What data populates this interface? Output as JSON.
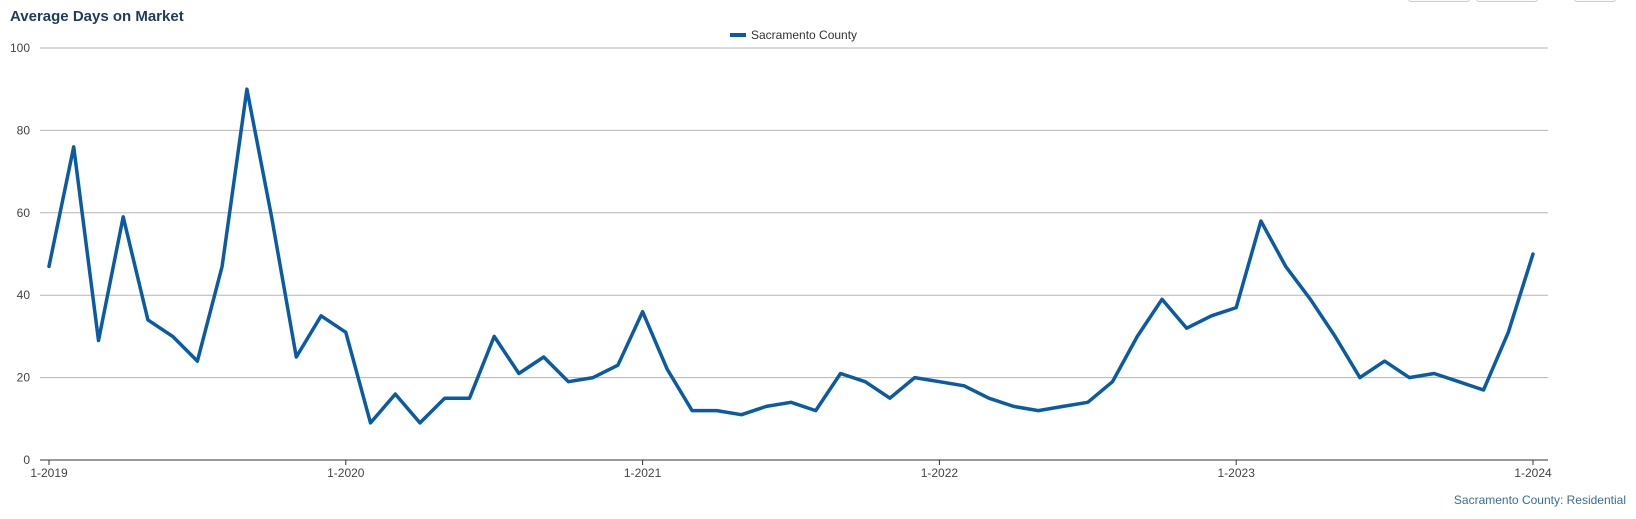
{
  "title": "Average Days on Market",
  "footer": "Sacramento County: Residential",
  "chart_data": {
    "type": "line",
    "title": "Average Days on Market",
    "xlabel": "",
    "ylabel": "",
    "ylim": [
      0,
      100
    ],
    "yticks": [
      0,
      20,
      40,
      60,
      80,
      100
    ],
    "xticks": [
      "1-2019",
      "1-2020",
      "1-2021",
      "1-2022",
      "1-2023",
      "1-2024"
    ],
    "grid": true,
    "legend_position": "top-center",
    "x": [
      "1-2019",
      "2-2019",
      "3-2019",
      "4-2019",
      "5-2019",
      "6-2019",
      "7-2019",
      "8-2019",
      "9-2019",
      "10-2019",
      "11-2019",
      "12-2019",
      "1-2020",
      "2-2020",
      "3-2020",
      "4-2020",
      "5-2020",
      "6-2020",
      "7-2020",
      "8-2020",
      "9-2020",
      "10-2020",
      "11-2020",
      "12-2020",
      "1-2021",
      "2-2021",
      "3-2021",
      "4-2021",
      "5-2021",
      "6-2021",
      "7-2021",
      "8-2021",
      "9-2021",
      "10-2021",
      "11-2021",
      "12-2021",
      "1-2022",
      "2-2022",
      "3-2022",
      "4-2022",
      "5-2022",
      "6-2022",
      "7-2022",
      "8-2022",
      "9-2022",
      "10-2022",
      "11-2022",
      "12-2022",
      "1-2023",
      "2-2023",
      "3-2023",
      "4-2023",
      "5-2023",
      "6-2023",
      "7-2023",
      "8-2023",
      "9-2023",
      "10-2023",
      "11-2023",
      "12-2023",
      "1-2024"
    ],
    "series": [
      {
        "name": "Sacramento County",
        "color": "#0a5ba3",
        "values": [
          47,
          76,
          29,
          59,
          34,
          30,
          24,
          47,
          90,
          59,
          25,
          35,
          31,
          9,
          16,
          9,
          15,
          15,
          30,
          21,
          25,
          19,
          20,
          23,
          36,
          22,
          12,
          12,
          11,
          13,
          14,
          12,
          21,
          19,
          15,
          20,
          19,
          18,
          15,
          13,
          12,
          13,
          14,
          19,
          30,
          39,
          32,
          35,
          37,
          58,
          47,
          39,
          30,
          20,
          24,
          20,
          21,
          19,
          17,
          31,
          50
        ]
      }
    ]
  }
}
